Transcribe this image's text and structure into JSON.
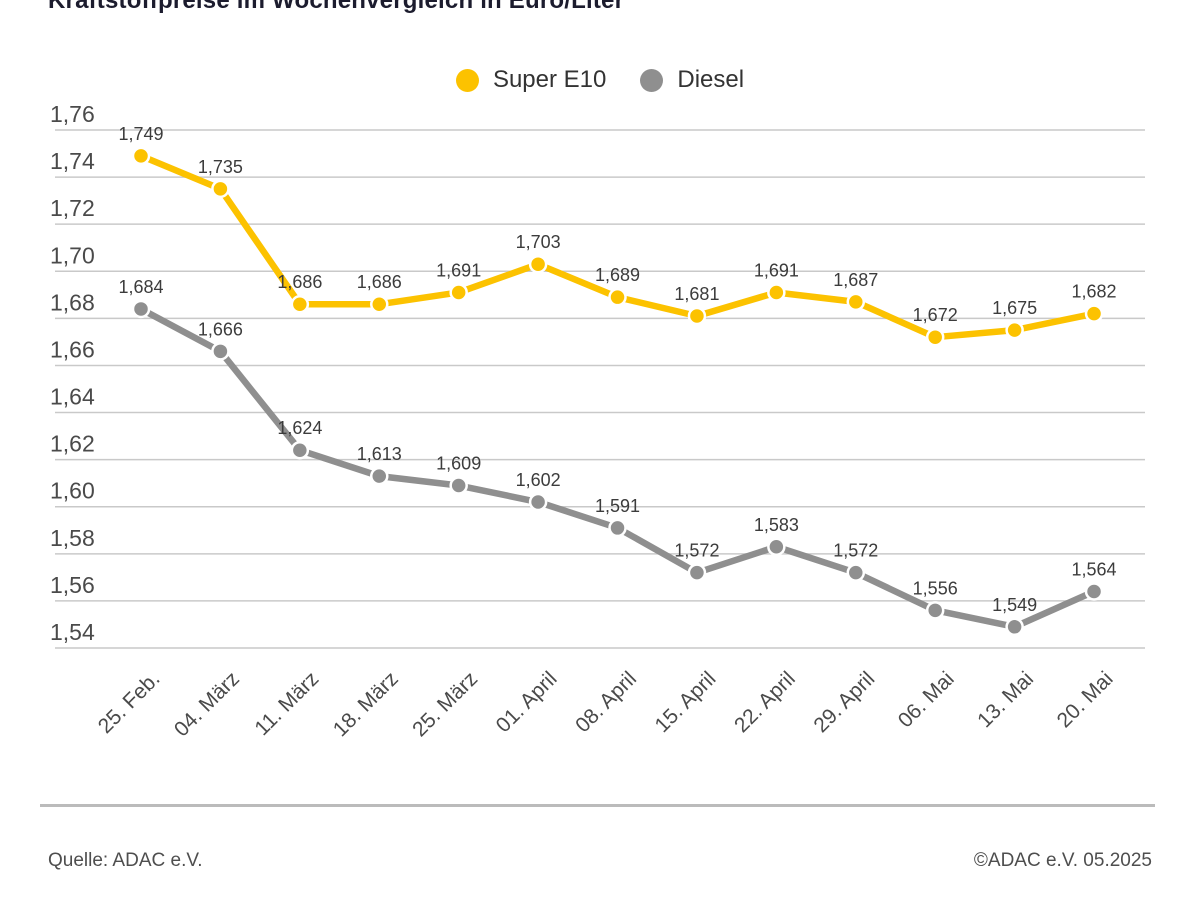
{
  "title": "Kraftstoffpreise im Wochenvergleich in Euro/Liter",
  "footer": {
    "source": "Quelle: ADAC e.V.",
    "copyright": "©ADAC e.V. 05.2025"
  },
  "colors": {
    "super_e10": "#FCC200",
    "diesel": "#8F8F8F",
    "gridline": "#C9C9C9",
    "label_text": "#3C3C3C",
    "axis_text": "#4A4A4A"
  },
  "chart_data": {
    "type": "line",
    "title": "Kraftstoffpreise im Wochenvergleich in Euro/Liter",
    "categories": [
      "25. Feb.",
      "04. März",
      "11. März",
      "18. März",
      "25. März",
      "01. April",
      "08. April",
      "15. April",
      "22. April",
      "29. April",
      "06. Mai",
      "13. Mai",
      "20. Mai"
    ],
    "series": [
      {
        "name": "Super E10",
        "color": "#FCC200",
        "values": [
          1.749,
          1.735,
          1.686,
          1.686,
          1.691,
          1.703,
          1.689,
          1.681,
          1.691,
          1.687,
          1.672,
          1.675,
          1.682
        ]
      },
      {
        "name": "Diesel",
        "color": "#8F8F8F",
        "values": [
          1.684,
          1.666,
          1.624,
          1.613,
          1.609,
          1.602,
          1.591,
          1.572,
          1.583,
          1.572,
          1.556,
          1.549,
          1.564
        ]
      }
    ],
    "ylim": [
      1.54,
      1.76
    ],
    "ytick_step": 0.02,
    "grid": "horizontal",
    "legend_position": "top",
    "decimal_separator": ",",
    "point_labels_shown": true
  }
}
